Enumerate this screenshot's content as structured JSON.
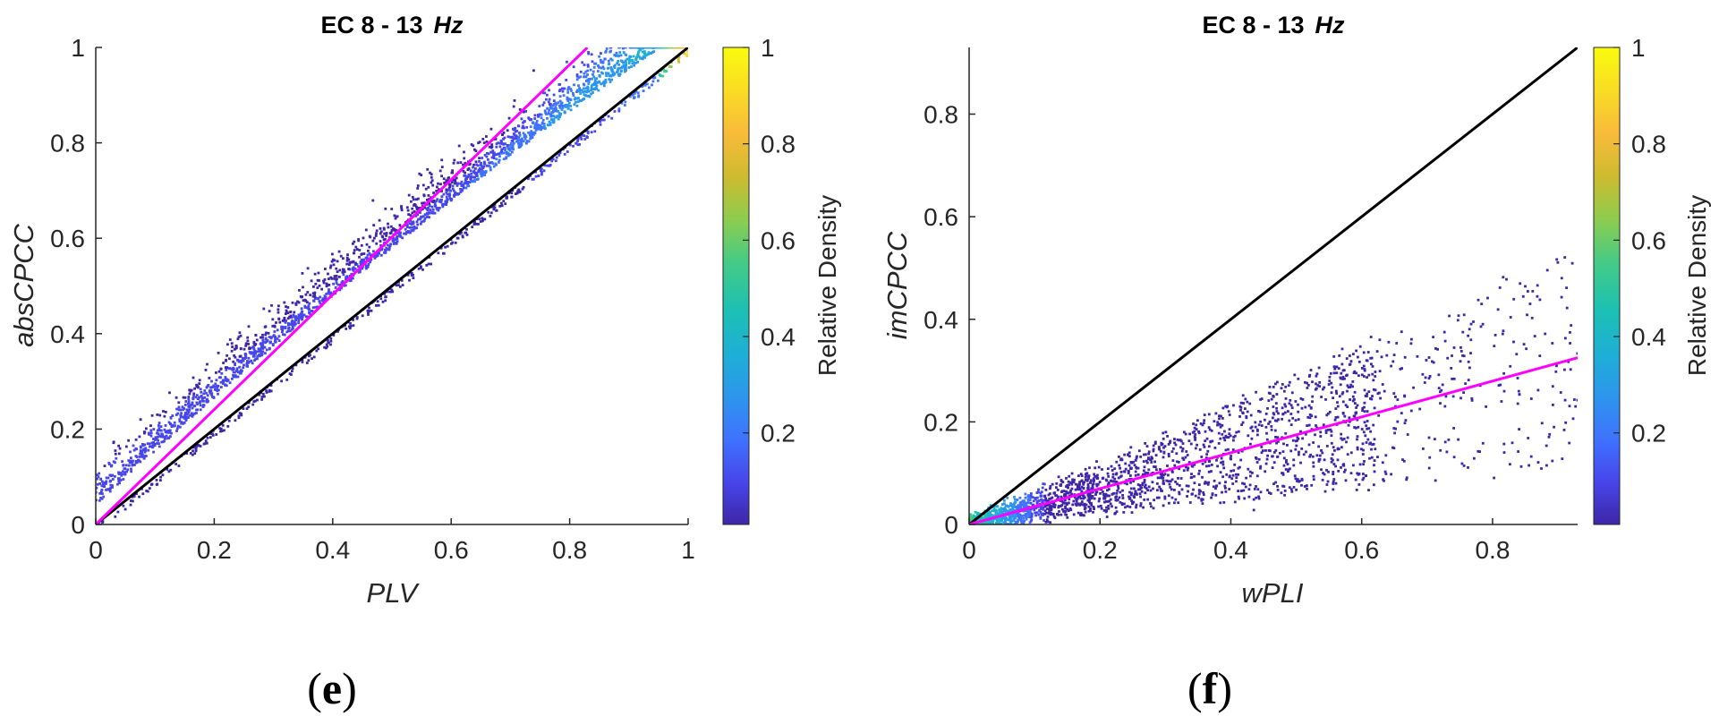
{
  "chart_data": [
    {
      "type": "scatter",
      "title": "EC 8 - 13",
      "title_unit": "Hz",
      "xlabel": "PLV",
      "ylabel": "absCPCC",
      "xlim": [
        0,
        1
      ],
      "ylim": [
        0,
        1
      ],
      "xticks": [
        "0",
        "0.2",
        "0.4",
        "0.6",
        "0.8",
        "1"
      ],
      "xtick_values": [
        0,
        0.2,
        0.4,
        0.6,
        0.8,
        1
      ],
      "yticks": [
        "0",
        "0.2",
        "0.4",
        "0.6",
        "0.8",
        "1"
      ],
      "ytick_values": [
        0,
        0.2,
        0.4,
        0.6,
        0.8,
        1
      ],
      "identity_line": {
        "color": "#000000",
        "from": [
          0,
          0
        ],
        "to": [
          1,
          1
        ]
      },
      "fit_line": {
        "color": "#ff00ff",
        "from": [
          0,
          0
        ],
        "to": [
          0.83,
          1
        ]
      },
      "point_cloud": {
        "relation": "y ≈ 1.13·x, clipped to the top-left of the identity line",
        "n_points": 2600,
        "density_peak": [
          0.97,
          1.0
        ]
      },
      "colorbar": {
        "label": "Relative Density",
        "ticks": [
          "0.2",
          "0.4",
          "0.6",
          "0.8",
          "1"
        ],
        "tick_values": [
          0.2,
          0.4,
          0.6,
          0.8,
          1
        ],
        "range": [
          0.01,
          1
        ]
      },
      "panel_label": "e"
    },
    {
      "type": "scatter",
      "title": "EC 8 - 13",
      "title_unit": "Hz",
      "xlabel": "wPLI",
      "ylabel": "imCPCC",
      "xlim": [
        0,
        0.93
      ],
      "ylim": [
        0,
        0.93
      ],
      "xticks": [
        "0",
        "0.2",
        "0.4",
        "0.6",
        "0.8"
      ],
      "xtick_values": [
        0,
        0.2,
        0.4,
        0.6,
        0.8
      ],
      "yticks": [
        "0",
        "0.2",
        "0.4",
        "0.6",
        "0.8"
      ],
      "ytick_values": [
        0,
        0.2,
        0.4,
        0.6,
        0.8
      ],
      "identity_line": {
        "color": "#000000",
        "from": [
          0,
          0
        ],
        "to": [
          0.93,
          0.93
        ]
      },
      "fit_line": {
        "color": "#ff00ff",
        "from": [
          0,
          0
        ],
        "to": [
          0.93,
          0.325
        ]
      },
      "point_cloud": {
        "relation": "y ≈ 0.35·x with wide spread, sparse beyond x = 0.6",
        "n_points": 2300,
        "density_peak": [
          0.02,
          0.005
        ]
      },
      "colorbar": {
        "label": "Relative Density",
        "ticks": [
          "0.2",
          "0.4",
          "0.6",
          "0.8",
          "1"
        ],
        "tick_values": [
          0.2,
          0.4,
          0.6,
          0.8,
          1
        ],
        "range": [
          0.01,
          1
        ]
      },
      "panel_label": "f"
    }
  ],
  "colormap": [
    "#3e26a8",
    "#4746eb",
    "#3e73fe",
    "#2c96ec",
    "#1eb0d5",
    "#1cc0b3",
    "#45cb85",
    "#8ecc4e",
    "#cebb2f",
    "#f8bb3a",
    "#f9dc24",
    "#f9fb0e"
  ]
}
